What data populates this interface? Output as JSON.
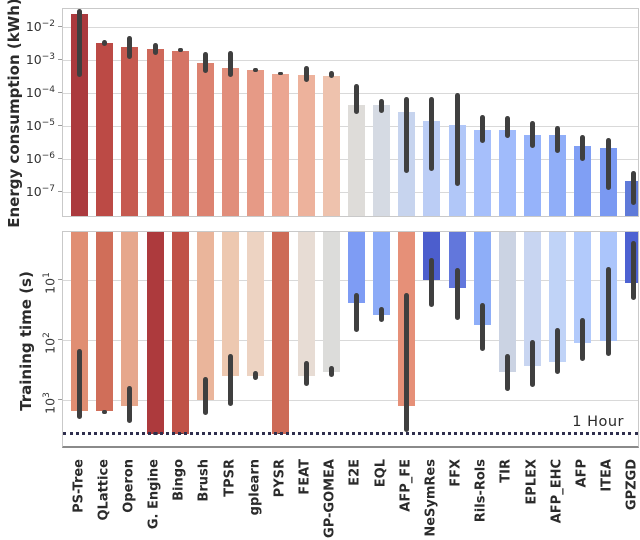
{
  "figure": {
    "reference_label": "1 Hour"
  },
  "chart_data": [
    {
      "type": "bar",
      "panel": "energy",
      "ylabel": "Energy consumption (kWh)",
      "yscale": "log",
      "grid": true,
      "legend": "none",
      "inverted": false,
      "ylim_display": [
        1.9e-08,
        0.0346
      ],
      "ticks": [
        {
          "exp": "−2",
          "value": 0.01
        },
        {
          "exp": "−3",
          "value": 0.001
        },
        {
          "exp": "−4",
          "value": 0.0001
        },
        {
          "exp": "−5",
          "value": 1e-05
        },
        {
          "exp": "−6",
          "value": 1e-06
        },
        {
          "exp": "−7",
          "value": 1e-07
        }
      ],
      "categories": [
        "PS-Tree",
        "QLattice",
        "Operon",
        "G. Engine",
        "Bingo",
        "Brush",
        "TPSR",
        "gplearn",
        "PYSR",
        "FEAT",
        "GP-GOMEA",
        "E2E",
        "EQL",
        "AFP_FE",
        "NeSymRes",
        "FFX",
        "Rils-Rols",
        "TIR",
        "EPLEX",
        "AFP_EHC",
        "AFP",
        "ITEA",
        "GPZGD"
      ],
      "values": [
        0.024,
        0.0032,
        0.0024,
        0.0021,
        0.0019,
        0.00083,
        0.00056,
        0.00048,
        0.00038,
        0.00035,
        0.00032,
        4.4e-05,
        4.3e-05,
        2.6e-05,
        1.4e-05,
        1.1e-05,
        7.8e-06,
        7.8e-06,
        5.5e-06,
        5.5e-06,
        2.5e-06,
        2.1e-06,
        2.1e-07
      ],
      "err_low": [
        0.0003,
        0.0027,
        0.0011,
        0.0014,
        0.0017,
        0.00039,
        0.00031,
        0.00042,
        0.00034,
        0.00022,
        0.00028,
        2.3e-05,
        2.5e-05,
        3.7e-07,
        4.5e-07,
        1.5e-07,
        3e-06,
        4.2e-06,
        2.1e-06,
        1.5e-06,
        8.9e-07,
        1.2e-07,
        4.2e-08
      ],
      "err_high": [
        0.034,
        0.0041,
        0.0054,
        0.0032,
        0.0023,
        0.0017,
        0.0018,
        0.00056,
        0.00043,
        0.00066,
        0.00045,
        0.00019,
        6.6e-05,
        7.8e-05,
        7.4e-05,
        0.0001,
        2.1e-05,
        2e-05,
        1.4e-05,
        9.7e-06,
        5.2e-06,
        4.2e-06,
        4.5e-07
      ],
      "colors": [
        "#ab3a3e",
        "#bc4a45",
        "#c65a50",
        "#ce685a",
        "#d57465",
        "#dc8270",
        "#e18e7b",
        "#e69a86",
        "#eba691",
        "#edb29c",
        "#eec2ad",
        "#dedcd9",
        "#d5dae3",
        "#c7d4ee",
        "#bbcdf5",
        "#b1c7f8",
        "#a6bffb",
        "#a0bbfb",
        "#96b3fa",
        "#90aef8",
        "#809ff4",
        "#7a99f2",
        "#5f7ad9"
      ]
    },
    {
      "type": "bar",
      "panel": "time",
      "ylabel": "Training time (s)",
      "yscale": "log",
      "grid": true,
      "legend": "none",
      "inverted": true,
      "ylim_display": [
        1.56,
        5860
      ],
      "ticks": [
        {
          "exp": "1",
          "value": 10
        },
        {
          "exp": "2",
          "value": 100
        },
        {
          "exp": "3",
          "value": 1000
        }
      ],
      "reference_line": {
        "value": 3600,
        "label": "1 Hour"
      },
      "categories": [
        "PS-Tree",
        "QLattice",
        "Operon",
        "G. Engine",
        "Bingo",
        "Brush",
        "TPSR",
        "gplearn",
        "PYSR",
        "FEAT",
        "GP-GOMEA",
        "E2E",
        "EQL",
        "AFP_FE",
        "NeSymRes",
        "FFX",
        "Rils-Rols",
        "TIR",
        "EPLEX",
        "AFP_EHC",
        "AFP",
        "ITEA",
        "GPZGD"
      ],
      "values": [
        1550,
        1550,
        1280,
        3650,
        3650,
        1000,
        400,
        400,
        3650,
        390,
        340,
        24,
        38,
        1280,
        10,
        13.5,
        55,
        340,
        270,
        230,
        110,
        105,
        11
      ],
      "err_low": [
        140,
        1450,
        580,
        3450,
        3500,
        410,
        170,
        330,
        3500,
        220,
        270,
        16,
        28,
        16,
        4.2,
        6.3,
        24,
        170,
        98,
        62,
        43,
        6,
        2.2
      ],
      "err_high": [
        2050,
        1700,
        2450,
        3800,
        3750,
        1800,
        1250,
        460,
        3750,
        580,
        410,
        72,
        50,
        3450,
        28,
        46,
        150,
        700,
        600,
        370,
        225,
        185,
        21
      ],
      "colors": [
        "#e08e73",
        "#d06e59",
        "#e6a78c",
        "#ad3a3d",
        "#c05247",
        "#eab59b",
        "#edc8b0",
        "#edd3c2",
        "#cd6b57",
        "#e7dcd4",
        "#dcdcda",
        "#7e9cf4",
        "#8cabf7",
        "#e69078",
        "#4c5ecd",
        "#6277dc",
        "#8eaef8",
        "#cbd3e3",
        "#c8d5f1",
        "#c0d3f7",
        "#b2cafb",
        "#abc5fb",
        "#4d62d2"
      ]
    }
  ]
}
